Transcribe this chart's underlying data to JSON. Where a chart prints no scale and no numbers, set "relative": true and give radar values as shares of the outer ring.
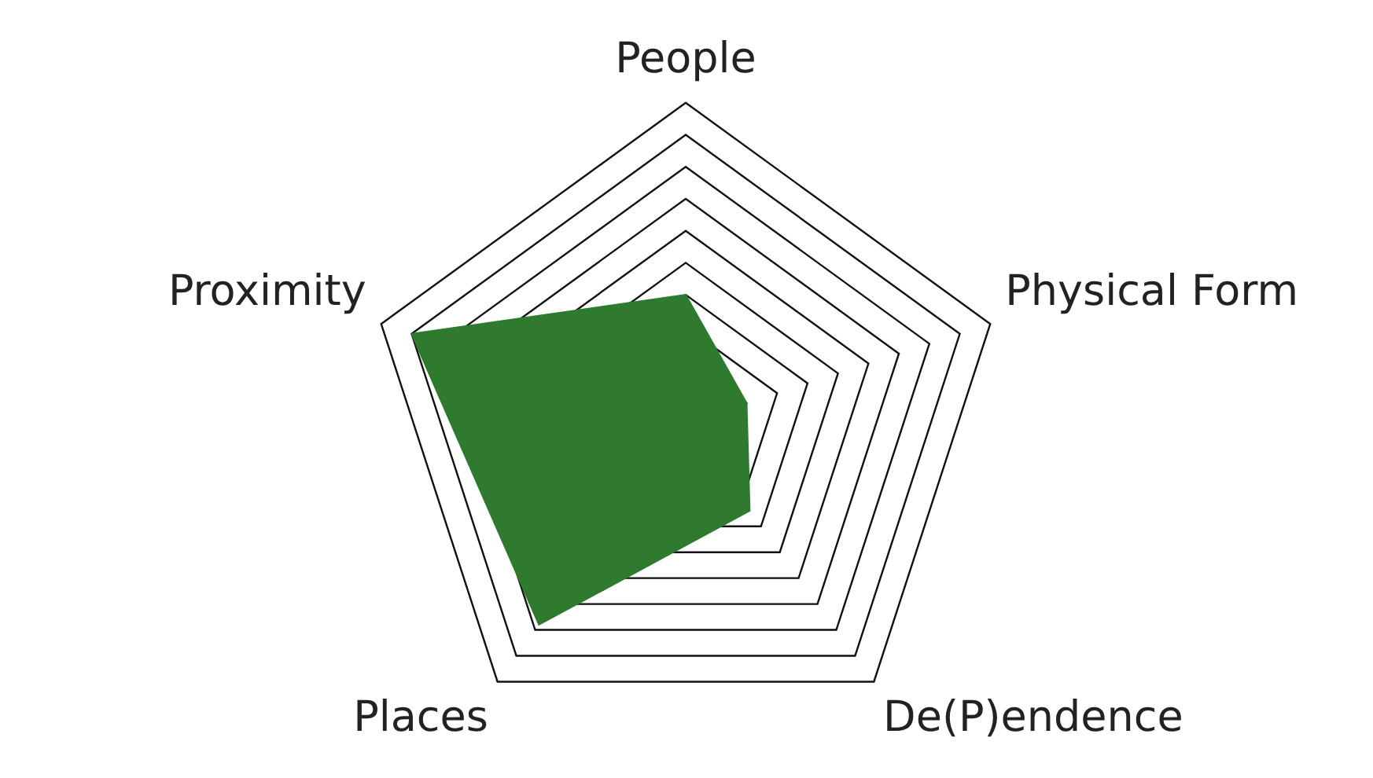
{
  "chart_data": {
    "type": "radar",
    "relative": true,
    "categories": [
      "People",
      "Physical Form",
      "De(P)endence",
      "Places",
      "Proximity"
    ],
    "series": [
      {
        "color": "#2e7a2e",
        "values": [
          0.4,
          0.2,
          0.34,
          0.78,
          0.9
        ]
      }
    ],
    "grid": true,
    "legend": false,
    "marker": "none"
  }
}
